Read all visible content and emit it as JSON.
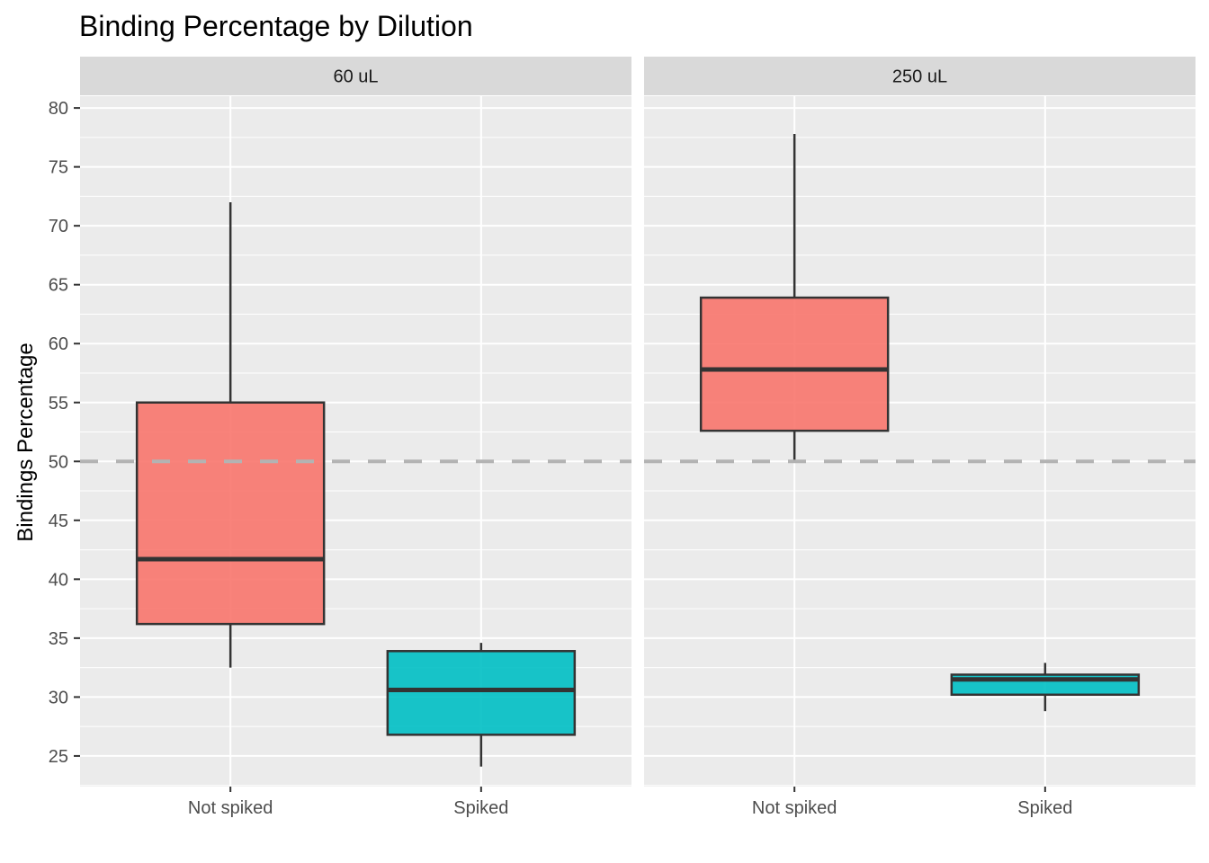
{
  "chart_data": {
    "type": "box",
    "title": "Binding Percentage by Dilution",
    "xlabel": "",
    "ylabel": "Bindings Percentage",
    "ylim": [
      22.4,
      81
    ],
    "yticks": [
      25,
      30,
      35,
      40,
      45,
      50,
      55,
      60,
      65,
      70,
      75,
      80
    ],
    "categories": [
      "Not spiked",
      "Spiked"
    ],
    "reference_line": {
      "y": 50,
      "style": "dashed",
      "color": "#b3b3b3"
    },
    "fill_colors": {
      "Not spiked": "#F8766D",
      "Spiked": "#00BFC4"
    },
    "panels": [
      {
        "label": "60 uL",
        "boxes": [
          {
            "category": "Not spiked",
            "min": 32.5,
            "q1": 36.2,
            "median": 41.7,
            "q3": 55.0,
            "max": 72.0
          },
          {
            "category": "Spiked",
            "min": 24.1,
            "q1": 26.8,
            "median": 30.6,
            "q3": 33.9,
            "max": 34.6
          }
        ]
      },
      {
        "label": "250 uL",
        "boxes": [
          {
            "category": "Not spiked",
            "min": 50.0,
            "q1": 52.6,
            "median": 57.8,
            "q3": 63.9,
            "max": 77.8
          },
          {
            "category": "Spiked",
            "min": 28.8,
            "q1": 30.2,
            "median": 31.5,
            "q3": 31.9,
            "max": 32.9
          }
        ]
      }
    ]
  }
}
